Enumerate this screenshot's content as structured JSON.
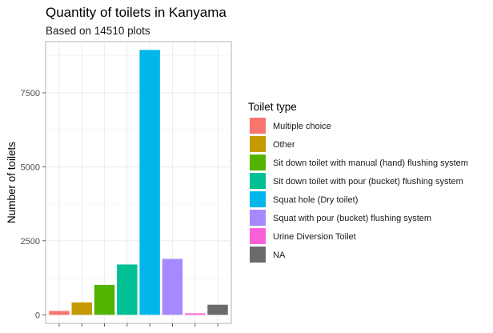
{
  "chart_data": {
    "type": "bar",
    "title": "Quantity of toilets in Kanyama",
    "subtitle": "Based on 14510 plots",
    "xlabel": "",
    "ylabel": "Number of toilets",
    "ylim": [
      -290,
      9230
    ],
    "yticks": [
      0,
      2500,
      5000,
      7500
    ],
    "ytick_labels": [
      "0",
      "2500",
      "5000",
      "7500"
    ],
    "grid": true,
    "legend": {
      "title": "Toilet type",
      "position": "right"
    },
    "categories": [
      "Multiple choice",
      "Other",
      "Sit down toilet with manual (hand) flushing system",
      "Sit down toilet with pour (bucket) flushing system",
      "Squat hole (Dry toilet)",
      "Squat with pour (bucket) flushing system",
      "Urine Diversion Toilet",
      "NA"
    ],
    "values": [
      130,
      420,
      1010,
      1700,
      8950,
      1890,
      50,
      340
    ],
    "colors": [
      "#F8766D",
      "#C49A00",
      "#53B400",
      "#00C094",
      "#00B6EB",
      "#A58AFF",
      "#FB61D7",
      "#6B6B6B"
    ]
  }
}
